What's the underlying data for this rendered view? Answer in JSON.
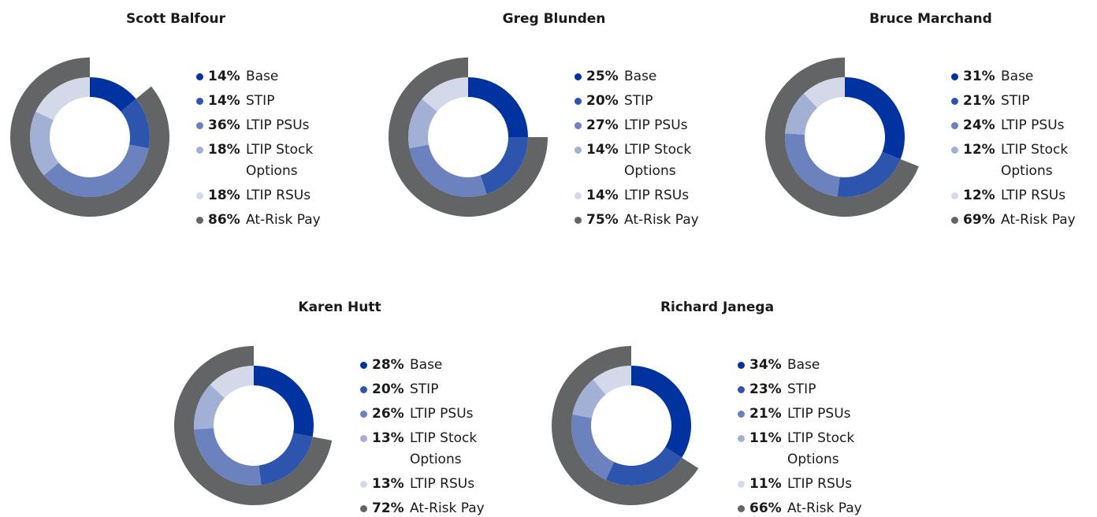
{
  "chart_data": [
    {
      "type": "donut",
      "title": "Scott Balfour",
      "categories": [
        "Base",
        "STIP",
        "LTIP PSUs",
        "LTIP Stock Options",
        "LTIP RSUs"
      ],
      "values": [
        14,
        14,
        36,
        18,
        18
      ],
      "value_labels": [
        "14%",
        "14%",
        "36%",
        "18%",
        "18%"
      ],
      "colors": [
        "#0033a0",
        "#2e55ad",
        "#6c82be",
        "#a3b0d5",
        "#d4d9e9"
      ],
      "outer": {
        "name": "At-Risk Pay",
        "value": 86,
        "value_label": "86%",
        "color": "#636466"
      }
    },
    {
      "type": "donut",
      "title": "Greg Blunden",
      "categories": [
        "Base",
        "STIP",
        "LTIP PSUs",
        "LTIP Stock Options",
        "LTIP RSUs"
      ],
      "values": [
        25,
        20,
        27,
        14,
        14
      ],
      "value_labels": [
        "25%",
        "20%",
        "27%",
        "14%",
        "14%"
      ],
      "colors": [
        "#0033a0",
        "#2e55ad",
        "#6c82be",
        "#a3b0d5",
        "#d4d9e9"
      ],
      "outer": {
        "name": "At-Risk Pay",
        "value": 75,
        "value_label": "75%",
        "color": "#636466"
      }
    },
    {
      "type": "donut",
      "title": "Bruce Marchand",
      "categories": [
        "Base",
        "STIP",
        "LTIP PSUs",
        "LTIP Stock Options",
        "LTIP RSUs"
      ],
      "values": [
        31,
        21,
        24,
        12,
        12
      ],
      "value_labels": [
        "31%",
        "21%",
        "24%",
        "12%",
        "12%"
      ],
      "colors": [
        "#0033a0",
        "#2e55ad",
        "#6c82be",
        "#a3b0d5",
        "#d4d9e9"
      ],
      "outer": {
        "name": "At-Risk Pay",
        "value": 69,
        "value_label": "69%",
        "color": "#636466"
      }
    },
    {
      "type": "donut",
      "title": "Karen Hutt",
      "categories": [
        "Base",
        "STIP",
        "LTIP PSUs",
        "LTIP Stock Options",
        "LTIP RSUs"
      ],
      "values": [
        28,
        20,
        26,
        13,
        13
      ],
      "value_labels": [
        "28%",
        "20%",
        "26%",
        "13%",
        "13%"
      ],
      "colors": [
        "#0033a0",
        "#2e55ad",
        "#6c82be",
        "#a3b0d5",
        "#d4d9e9"
      ],
      "outer": {
        "name": "At-Risk Pay",
        "value": 72,
        "value_label": "72%",
        "color": "#636466"
      }
    },
    {
      "type": "donut",
      "title": "Richard Janega",
      "categories": [
        "Base",
        "STIP",
        "LTIP PSUs",
        "LTIP Stock Options",
        "LTIP RSUs"
      ],
      "values": [
        34,
        23,
        21,
        11,
        11
      ],
      "value_labels": [
        "34%",
        "23%",
        "21%",
        "11%",
        "11%"
      ],
      "colors": [
        "#0033a0",
        "#2e55ad",
        "#6c82be",
        "#a3b0d5",
        "#d4d9e9"
      ],
      "outer": {
        "name": "At-Risk Pay",
        "value": 66,
        "value_label": "66%",
        "color": "#636466"
      }
    }
  ]
}
